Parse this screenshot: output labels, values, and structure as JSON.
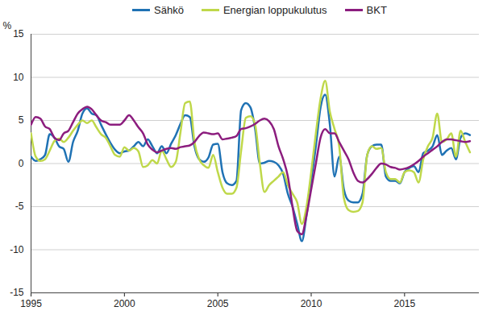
{
  "chart_data": {
    "type": "line",
    "ylabel": "%",
    "legend": "top",
    "grid": true,
    "x": [
      1995,
      1995.25,
      1995.5,
      1995.75,
      1996,
      1996.25,
      1996.5,
      1996.75,
      1997,
      1997.25,
      1997.5,
      1997.75,
      1998,
      1998.25,
      1998.5,
      1998.75,
      1999,
      1999.25,
      1999.5,
      1999.75,
      2000,
      2000.25,
      2000.5,
      2000.75,
      2001,
      2001.25,
      2001.5,
      2001.75,
      2002,
      2002.25,
      2002.5,
      2002.75,
      2003,
      2003.25,
      2003.5,
      2003.75,
      2004,
      2004.25,
      2004.5,
      2004.75,
      2005,
      2005.25,
      2005.5,
      2005.75,
      2006,
      2006.25,
      2006.5,
      2006.75,
      2007,
      2007.25,
      2007.5,
      2007.75,
      2008,
      2008.25,
      2008.5,
      2008.75,
      2009,
      2009.25,
      2009.5,
      2009.75,
      2010,
      2010.25,
      2010.5,
      2010.75,
      2011,
      2011.25,
      2011.5,
      2011.75,
      2012,
      2012.25,
      2012.5,
      2012.75,
      2013,
      2013.25,
      2013.5,
      2013.75,
      2014,
      2014.25,
      2014.5,
      2014.75,
      2015,
      2015.25,
      2015.5,
      2015.75,
      2016,
      2016.25,
      2016.5,
      2016.75,
      2017,
      2017.25,
      2017.5,
      2017.75,
      2018,
      2018.25,
      2018.5
    ],
    "series": [
      {
        "name": "Sähkö",
        "color": "#1f72b4",
        "values": [
          0.8,
          0.3,
          0.5,
          1.0,
          3.4,
          3.0,
          2.0,
          1.7,
          0.2,
          2.5,
          3.8,
          5.8,
          6.4,
          5.8,
          5.6,
          4.5,
          3.4,
          2.4,
          1.6,
          1.2,
          1.4,
          1.5,
          2.0,
          2.5,
          2.0,
          2.8,
          2.0,
          1.2,
          2.0,
          1.2,
          2.3,
          3.3,
          4.6,
          5.6,
          5.4,
          2.0,
          0.5,
          0.2,
          0.7,
          2.2,
          2.3,
          -1.0,
          -2.3,
          -2.5,
          -2.0,
          6.2,
          7.0,
          6.5,
          4.0,
          0.0,
          0.1,
          0.3,
          0.2,
          -0.2,
          -1.2,
          -3.5,
          -5.0,
          -7.0,
          -9.0,
          -6.0,
          -2.0,
          2.0,
          6.5,
          8.0,
          4.5,
          -1.5,
          0.8,
          -3.0,
          -4.3,
          -4.5,
          -4.5,
          -3.5,
          1.0,
          2.0,
          2.2,
          2.2,
          -1.5,
          -2.0,
          -2.0,
          -2.3,
          -1.0,
          -0.5,
          -0.3,
          -1.0,
          1.2,
          1.5,
          2.0,
          3.3,
          1.0,
          1.5,
          1.8,
          0.5,
          3.0,
          3.5,
          3.3
        ]
      },
      {
        "name": "Energian loppukulutus",
        "color": "#bfd84a",
        "values": [
          3.5,
          0.8,
          0.3,
          0.5,
          1.5,
          2.6,
          2.9,
          2.5,
          3.0,
          3.8,
          4.5,
          5.0,
          4.7,
          5.0,
          4.2,
          3.4,
          3.0,
          2.0,
          1.0,
          0.8,
          1.9,
          1.5,
          1.8,
          1.4,
          -0.4,
          -0.2,
          0.4,
          0.0,
          1.5,
          0.5,
          -0.4,
          0.2,
          3.6,
          7.0,
          7.2,
          2.5,
          0.5,
          -0.2,
          -0.5,
          1.0,
          -1.0,
          -2.8,
          -3.5,
          -3.5,
          -2.8,
          1.5,
          5.3,
          5.5,
          4.5,
          0.0,
          -3.3,
          -2.5,
          -2.0,
          -1.5,
          -1.0,
          -2.5,
          -3.5,
          -4.5,
          -7.0,
          -5.0,
          -1.0,
          3.5,
          7.5,
          9.6,
          6.0,
          4.0,
          2.0,
          -4.0,
          -5.4,
          -5.6,
          -5.5,
          -4.5,
          1.0,
          2.0,
          1.7,
          1.8,
          -1.0,
          -1.8,
          -1.8,
          -2.2,
          -1.0,
          -0.8,
          -1.0,
          -2.2,
          0.5,
          2.0,
          3.0,
          5.8,
          2.5,
          2.8,
          3.5,
          0.8,
          3.8,
          2.5,
          1.3
        ]
      },
      {
        "name": "BKT",
        "color": "#8c1d7e",
        "values": [
          4.5,
          5.4,
          5.2,
          4.3,
          4.0,
          3.0,
          2.7,
          3.5,
          3.8,
          4.8,
          5.8,
          6.3,
          6.6,
          6.3,
          5.6,
          5.0,
          4.8,
          4.5,
          4.5,
          4.5,
          5.0,
          5.6,
          5.0,
          4.2,
          3.5,
          2.2,
          1.6,
          1.3,
          1.5,
          1.7,
          1.8,
          1.7,
          1.9,
          2.0,
          2.1,
          2.5,
          3.2,
          3.6,
          3.5,
          3.4,
          3.5,
          2.8,
          2.9,
          3.0,
          3.2,
          4.0,
          4.1,
          4.3,
          4.6,
          5.0,
          5.2,
          4.9,
          4.0,
          2.0,
          0.5,
          -1.5,
          -5.0,
          -7.8,
          -8.2,
          -6.0,
          -3.0,
          0.0,
          3.0,
          4.0,
          3.5,
          3.5,
          2.5,
          1.5,
          0.5,
          -1.0,
          -2.0,
          -2.2,
          -1.8,
          -1.2,
          -0.5,
          0.0,
          -0.1,
          -0.4,
          -0.5,
          -0.7,
          -0.6,
          -0.4,
          -0.1,
          0.3,
          0.8,
          1.2,
          1.6,
          2.0,
          2.5,
          2.8,
          2.8,
          2.7,
          2.6,
          2.5,
          2.6
        ]
      }
    ],
    "xlim": [
      1995,
      2019
    ],
    "xticks": [
      1995,
      2000,
      2005,
      2010,
      2015
    ],
    "ylim": [
      -15,
      15
    ],
    "yticks": [
      -15,
      -10,
      -5,
      0,
      5,
      10,
      15
    ]
  }
}
